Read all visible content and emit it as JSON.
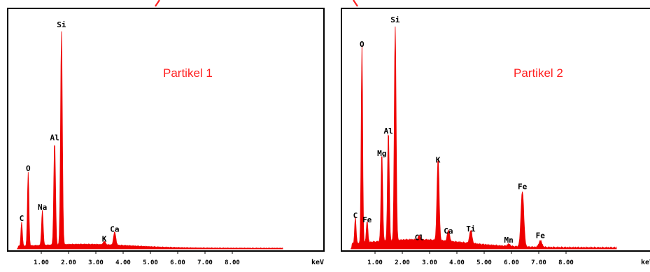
{
  "chart_data": [
    {
      "type": "line",
      "title": "Partikel 1",
      "xlabel": "keV",
      "ylabel": "",
      "xlim": [
        0,
        10.0
      ],
      "ylim": [
        0,
        100
      ],
      "x_ticks": [
        "1.00",
        "2.00",
        "3.00",
        "4.00",
        "5.00",
        "6.00",
        "7.00",
        "8.00"
      ],
      "grid": false,
      "color": "#ee0000",
      "peaks": [
        {
          "label": "C",
          "x": 0.28,
          "y": 11
        },
        {
          "label": "O",
          "x": 0.52,
          "y": 34
        },
        {
          "label": "Na",
          "x": 1.04,
          "y": 16
        },
        {
          "label": "Al",
          "x": 1.49,
          "y": 48
        },
        {
          "label": "Si",
          "x": 1.74,
          "y": 100
        },
        {
          "label": "K",
          "x": 3.31,
          "y": 1.5
        },
        {
          "label": "Ca",
          "x": 3.69,
          "y": 6
        }
      ]
    },
    {
      "type": "line",
      "title": "Partikel 2",
      "xlabel": "keV",
      "ylabel": "",
      "xlim": [
        0,
        10.0
      ],
      "ylim": [
        0,
        100
      ],
      "x_ticks": [
        "1.00",
        "2.00",
        "3.00",
        "4.00",
        "5.00",
        "6.00",
        "7.00",
        "8.00"
      ],
      "grid": false,
      "color": "#ee0000",
      "peaks": [
        {
          "label": "C",
          "x": 0.28,
          "y": 12
        },
        {
          "label": "O",
          "x": 0.52,
          "y": 89
        },
        {
          "label": "Fe",
          "x": 0.71,
          "y": 10
        },
        {
          "label": "Mg",
          "x": 1.25,
          "y": 40
        },
        {
          "label": "Al",
          "x": 1.49,
          "y": 50
        },
        {
          "label": "Si",
          "x": 1.74,
          "y": 100
        },
        {
          "label": "Cl",
          "x": 2.62,
          "y": 2
        },
        {
          "label": "K",
          "x": 3.31,
          "y": 37
        },
        {
          "label": "Ca",
          "x": 3.69,
          "y": 5
        },
        {
          "label": "Ti",
          "x": 4.51,
          "y": 6
        },
        {
          "label": "Mn",
          "x": 5.9,
          "y": 1
        },
        {
          "label": "Fe",
          "x": 6.4,
          "y": 25
        },
        {
          "label": "Fe",
          "x": 7.06,
          "y": 3
        }
      ]
    }
  ]
}
